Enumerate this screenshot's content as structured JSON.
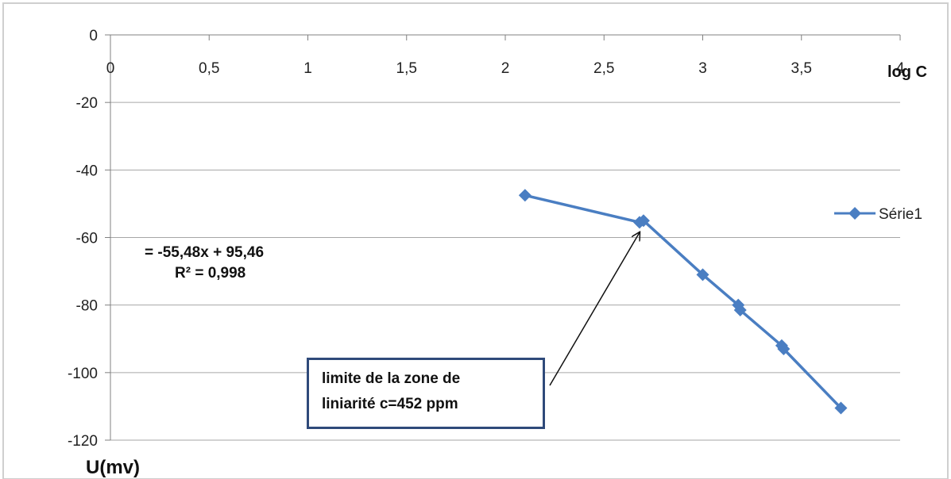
{
  "chart_data": {
    "type": "line",
    "xlabel": "log C",
    "ylabel": "U(mv)",
    "xlim": [
      0,
      4
    ],
    "ylim": [
      -120,
      0
    ],
    "x_ticks": [
      "0",
      "0,5",
      "1",
      "1,5",
      "2",
      "2,5",
      "3",
      "3,5",
      "4"
    ],
    "y_ticks": [
      "0",
      "-20",
      "-40",
      "-60",
      "-80",
      "-100",
      "-120"
    ],
    "grid": "horizontal",
    "legend_position": "right",
    "series": [
      {
        "name": "Série1",
        "color": "#4a7ec2",
        "x": [
          2.1,
          2.68,
          2.7,
          3.0,
          3.18,
          3.19,
          3.4,
          3.41,
          3.7
        ],
        "y": [
          -47.5,
          -55.5,
          -55,
          -71,
          -80,
          -81.5,
          -92,
          -93,
          -110.5
        ]
      }
    ],
    "annotations": {
      "equation": "= -55,48x + 95,46",
      "r_squared": "R² = 0,998",
      "callout_line1": "limite de la zone de",
      "callout_line2": "liniarité c=452 ppm",
      "arrow_target": {
        "x": 2.68,
        "y": -58.5
      }
    }
  }
}
